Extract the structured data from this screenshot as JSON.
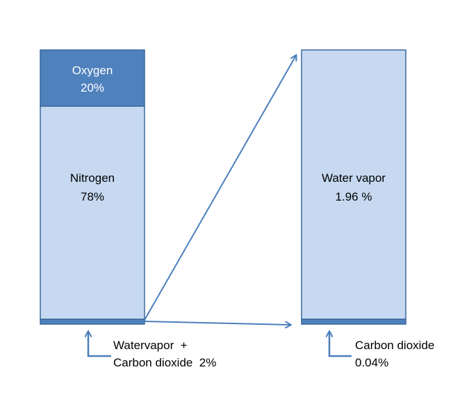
{
  "left_bar": {
    "segments": [
      {
        "name": "Oxygen",
        "value": "20%"
      },
      {
        "name": "Nitrogen",
        "value": "78%"
      }
    ],
    "note": [
      "Watervapor  +",
      "Carbon dioxide  2%"
    ]
  },
  "right_bar": {
    "segments": [
      {
        "name": "Water vapor",
        "value": "1.96 %"
      }
    ],
    "note": [
      "Carbon dioxide",
      "0.04%"
    ]
  }
}
